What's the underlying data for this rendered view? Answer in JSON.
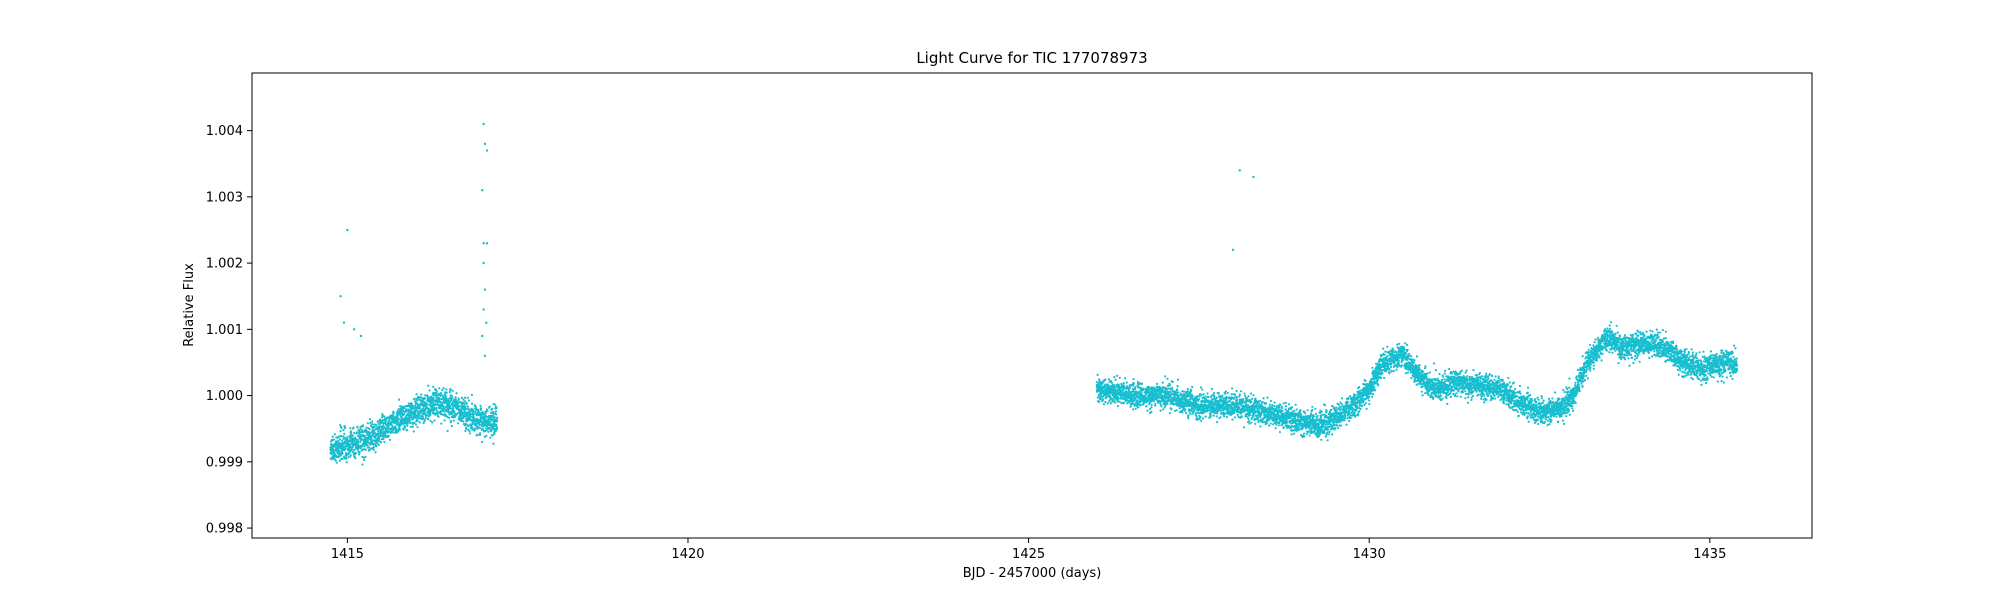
{
  "chart_data": {
    "type": "scatter",
    "title": "Light Curve for TIC 177078973",
    "xlabel": "BJD - 2457000 (days)",
    "ylabel": "Relative Flux",
    "xlim": [
      1413.6,
      1436.5
    ],
    "ylim": [
      0.99785,
      1.00487
    ],
    "xticks": [
      1415,
      1420,
      1425,
      1430,
      1435
    ],
    "xtick_labels": [
      "1415",
      "1420",
      "1425",
      "1430",
      "1435"
    ],
    "yticks": [
      0.998,
      0.999,
      1.0,
      1.001,
      1.002,
      1.003,
      1.004
    ],
    "ytick_labels": [
      "0.998",
      "0.999",
      "1.000",
      "1.001",
      "1.002",
      "1.003",
      "1.004"
    ],
    "grid": false,
    "marker_color": "#17becf",
    "series": [
      {
        "segments": [
          {
            "x_range": [
              1414.75,
              1417.2
            ],
            "trend": [
              [
                1414.75,
                0.99915
              ],
              [
                1415.0,
                0.99925
              ],
              [
                1415.3,
                0.99935
              ],
              [
                1415.6,
                0.99955
              ],
              [
                1416.0,
                0.99975
              ],
              [
                1416.3,
                0.9999
              ],
              [
                1416.6,
                0.9998
              ],
              [
                1416.9,
                0.99965
              ],
              [
                1417.2,
                0.9996
              ]
            ],
            "scatter": 0.00022
          },
          {
            "x_range": [
              1426.0,
              1435.4
            ],
            "trend": [
              [
                1426.0,
                1.0001
              ],
              [
                1426.5,
                1.0
              ],
              [
                1427.0,
                1.0
              ],
              [
                1427.5,
                0.99985
              ],
              [
                1428.0,
                0.99985
              ],
              [
                1428.5,
                0.99975
              ],
              [
                1429.0,
                0.9996
              ],
              [
                1429.3,
                0.99955
              ],
              [
                1429.7,
                0.9998
              ],
              [
                1430.0,
                1.0001
              ],
              [
                1430.2,
                1.0005
              ],
              [
                1430.5,
                1.0006
              ],
              [
                1430.8,
                1.0002
              ],
              [
                1431.0,
                1.0001
              ],
              [
                1431.3,
                1.0002
              ],
              [
                1431.6,
                1.00015
              ],
              [
                1431.9,
                1.0001
              ],
              [
                1432.2,
                0.9999
              ],
              [
                1432.5,
                0.99975
              ],
              [
                1432.8,
                0.9998
              ],
              [
                1433.0,
                1.0
              ],
              [
                1433.2,
                1.0005
              ],
              [
                1433.5,
                1.0009
              ],
              [
                1433.7,
                1.0007
              ],
              [
                1434.0,
                1.0008
              ],
              [
                1434.3,
                1.00075
              ],
              [
                1434.6,
                1.0005
              ],
              [
                1434.9,
                1.0004
              ],
              [
                1435.2,
                1.0005
              ],
              [
                1435.4,
                1.0005
              ]
            ],
            "scatter": 0.00018
          }
        ],
        "outliers": [
          [
            1415.0,
            1.0025
          ],
          [
            1414.9,
            1.0015
          ],
          [
            1414.95,
            1.0011
          ],
          [
            1415.1,
            1.001
          ],
          [
            1415.2,
            1.0009
          ],
          [
            1417.0,
            1.0041
          ],
          [
            1417.02,
            1.0038
          ],
          [
            1417.05,
            1.0037
          ],
          [
            1416.98,
            1.0031
          ],
          [
            1417.0,
            1.0023
          ],
          [
            1417.05,
            1.0023
          ],
          [
            1417.0,
            1.002
          ],
          [
            1417.02,
            1.0016
          ],
          [
            1417.0,
            1.0013
          ],
          [
            1417.04,
            1.0011
          ],
          [
            1416.98,
            1.0009
          ],
          [
            1417.02,
            1.0006
          ],
          [
            1428.0,
            1.0022
          ],
          [
            1428.1,
            1.0034
          ],
          [
            1428.3,
            1.0033
          ]
        ]
      }
    ]
  }
}
